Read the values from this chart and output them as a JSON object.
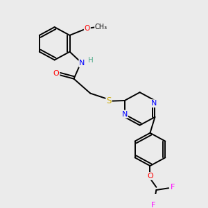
{
  "background_color": "#ebebeb",
  "atom_colors": {
    "C": "#000000",
    "H": "#4daa88",
    "N": "#0000ff",
    "O": "#ff0000",
    "S": "#ccaa00",
    "F": "#ff00ff"
  },
  "lw": 1.4,
  "fontsize": 7.5
}
